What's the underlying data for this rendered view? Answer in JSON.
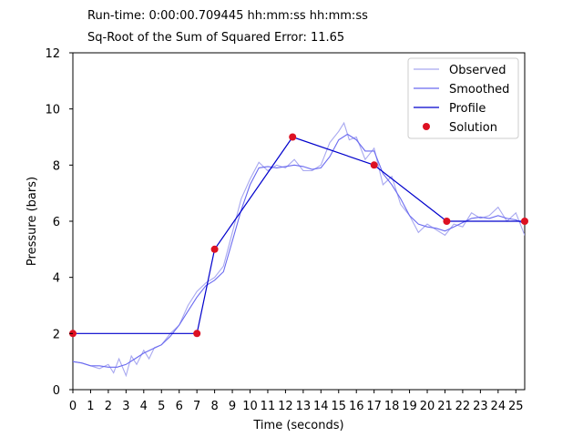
{
  "chart_data": {
    "type": "line",
    "title": "",
    "annotations": [
      "Run-time: 0:00:00.709445 hh:mm:ss hh:mm:ss",
      "Sq-Root of the Sum of Squared Error: 11.65"
    ],
    "xlabel": "Time (seconds)",
    "ylabel": "Pressure (bars)",
    "xlim": [
      0,
      25.5
    ],
    "ylim": [
      0,
      12
    ],
    "xticks": [
      0,
      1,
      2,
      3,
      4,
      5,
      6,
      7,
      8,
      9,
      10,
      11,
      12,
      13,
      14,
      15,
      16,
      17,
      18,
      19,
      20,
      21,
      22,
      23,
      24,
      25
    ],
    "yticks": [
      0,
      2,
      4,
      6,
      8,
      10,
      12
    ],
    "grid": false,
    "legend_position": "top-right",
    "series": [
      {
        "name": "Observed",
        "color": "#a8a8f0",
        "style": "line",
        "x": [
          0,
          0.5,
          1,
          1.5,
          2,
          2.3,
          2.6,
          3,
          3.3,
          3.6,
          4,
          4.3,
          4.6,
          5,
          5.5,
          6,
          6.5,
          7,
          7.5,
          8,
          8.5,
          9,
          9.5,
          10,
          10.5,
          11,
          11.5,
          12,
          12.5,
          13,
          13.5,
          14,
          14.5,
          15,
          15.3,
          15.6,
          16,
          16.5,
          17,
          17.5,
          18,
          18.5,
          19,
          19.5,
          20,
          20.5,
          21,
          21.5,
          22,
          22.5,
          23,
          23.5,
          24,
          24.5,
          25,
          25.5
        ],
        "y": [
          1.0,
          0.95,
          0.85,
          0.75,
          0.9,
          0.6,
          1.1,
          0.5,
          1.2,
          0.9,
          1.4,
          1.1,
          1.5,
          1.6,
          2.0,
          2.3,
          3.0,
          3.5,
          3.8,
          4.0,
          4.4,
          5.6,
          6.8,
          7.5,
          8.1,
          7.8,
          8.0,
          7.9,
          8.2,
          7.8,
          7.8,
          8.0,
          8.8,
          9.2,
          9.5,
          8.9,
          9.0,
          8.2,
          8.6,
          7.3,
          7.6,
          6.6,
          6.2,
          5.6,
          5.9,
          5.7,
          5.5,
          5.9,
          5.8,
          6.3,
          6.1,
          6.2,
          6.5,
          6.0,
          6.3,
          5.5
        ]
      },
      {
        "name": "Smoothed",
        "color": "#6a6af0",
        "style": "line",
        "x": [
          0,
          0.5,
          1,
          1.5,
          2,
          2.5,
          3,
          3.5,
          4,
          4.5,
          5,
          5.5,
          6,
          6.5,
          7,
          7.5,
          8,
          8.5,
          9,
          9.5,
          10,
          10.5,
          11,
          11.5,
          12,
          12.5,
          13,
          13.5,
          14,
          14.5,
          15,
          15.5,
          16,
          16.5,
          17,
          17.5,
          18,
          18.5,
          19,
          19.5,
          20,
          20.5,
          21,
          21.5,
          22,
          22.5,
          23,
          23.5,
          24,
          24.5,
          25,
          25.5
        ],
        "y": [
          1.0,
          0.95,
          0.85,
          0.85,
          0.8,
          0.8,
          0.9,
          1.1,
          1.3,
          1.45,
          1.6,
          1.9,
          2.3,
          2.8,
          3.3,
          3.7,
          3.9,
          4.2,
          5.3,
          6.4,
          7.3,
          7.9,
          7.95,
          7.9,
          7.95,
          8.0,
          7.95,
          7.85,
          7.9,
          8.3,
          8.9,
          9.1,
          8.9,
          8.5,
          8.5,
          7.7,
          7.3,
          6.8,
          6.2,
          5.9,
          5.8,
          5.75,
          5.65,
          5.8,
          5.95,
          6.1,
          6.15,
          6.1,
          6.2,
          6.1,
          6.05,
          5.9
        ]
      },
      {
        "name": "Profile",
        "color": "#0000cc",
        "style": "line",
        "x": [
          0,
          7,
          8,
          12.4,
          17,
          21.1,
          25.5
        ],
        "y": [
          2,
          2,
          5,
          9,
          8,
          6,
          6
        ]
      },
      {
        "name": "Solution",
        "color": "#dd1122",
        "style": "scatter",
        "x": [
          0,
          7,
          8,
          12.4,
          17,
          21.1,
          25.5
        ],
        "y": [
          2,
          2,
          5,
          9,
          8,
          6,
          6
        ]
      }
    ]
  }
}
